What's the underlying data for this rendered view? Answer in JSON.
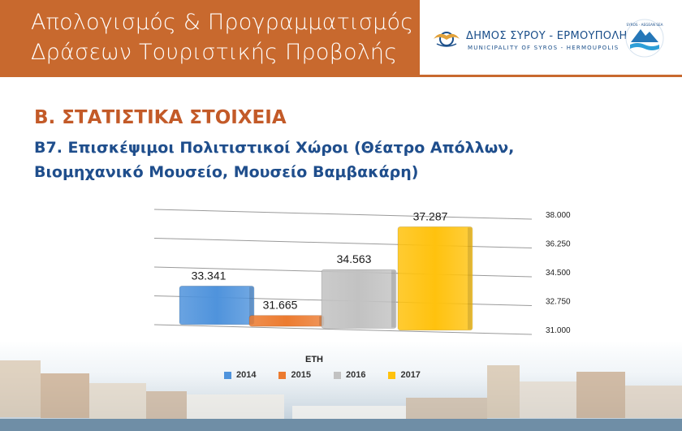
{
  "header": {
    "title_line1": "Απολογισμός & Προγραμματισμός",
    "title_line2": "Δράσεων Τουριστικής Προβολής",
    "logo_name": "ΔΗΜΟΣ ΣΥΡΟΥ - ΕΡΜΟΥΠΟΛΗΣ",
    "logo_sub": "MUNICIPALITY OF SYROS - HERMOUPOLIS",
    "badge_text": "SYROS · AEGEAN SEA"
  },
  "section_title": "Β. ΣΤΑΤΙΣΤΙΚΑ ΣΤΟΙΧΕΙΑ",
  "subtitle_line1": "Β7. Επισκέψιμοι Πολιτιστικοί Χώροι (Θέατρο Απόλλων,",
  "subtitle_line2": "Βιομηχανικό Μουσείο, Μουσείο Βαμβακάρη)",
  "colors": {
    "header_bg": "#c8692e",
    "section_title": "#c35a28",
    "subtitle": "#1f4e8c"
  },
  "chart_data": {
    "type": "bar",
    "title": "",
    "legend_title": "ΕΤΗ",
    "legend_position": "bottom",
    "categories": [
      "2014",
      "2015",
      "2016",
      "2017"
    ],
    "values": [
      33341,
      31665,
      34563,
      37287
    ],
    "value_labels": [
      "33.341",
      "31.665",
      "34.563",
      "37.287"
    ],
    "colors": [
      "#4f93dc",
      "#ec7b30",
      "#c2c2c2",
      "#ffc20e"
    ],
    "ylim": [
      31000,
      38000
    ],
    "yticks": [
      31000,
      32750,
      34500,
      36250,
      38000
    ],
    "ytick_labels": [
      "31.000",
      "32.750",
      "34.500",
      "36.250",
      "38.000"
    ],
    "y_axis_side": "right",
    "grid": true,
    "xlabel": "",
    "ylabel": ""
  }
}
